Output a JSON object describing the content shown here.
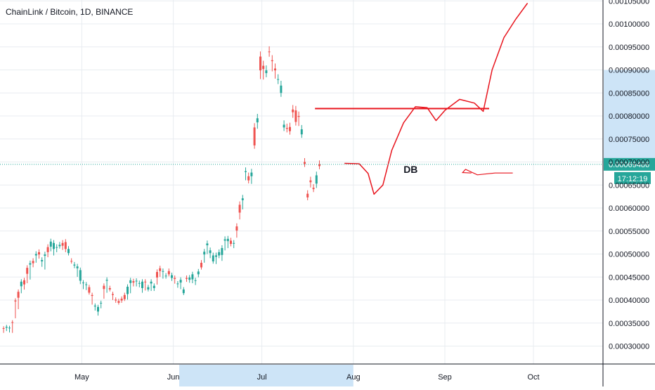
{
  "chart_data": {
    "type": "candlestick",
    "title": "ChainLink / Bitcoin, 1D, BINANCE",
    "price_axis": {
      "min": 0.00025,
      "max": 0.00105,
      "ticks": [
        "0.00030000",
        "0.00035000",
        "0.00040000",
        "0.00045000",
        "0.00050000",
        "0.00055000",
        "0.00060000",
        "0.00065000",
        "0.00070000",
        "0.00075000",
        "0.00080000",
        "0.00085000",
        "0.00090000",
        "0.00095000",
        "0.00100000",
        "0.00105000"
      ]
    },
    "time_axis": {
      "labels": [
        {
          "label": "May",
          "day": 27
        },
        {
          "label": "Jun",
          "day": 58
        },
        {
          "label": "Jul",
          "day": 88
        },
        {
          "label": "Aug",
          "day": 119
        },
        {
          "label": "Sep",
          "day": 150
        },
        {
          "label": "Oct",
          "day": 180
        }
      ]
    },
    "last_price": {
      "value": 0.00069486,
      "label": "0.00069486",
      "countdown": "17:12:19"
    },
    "colors": {
      "up": "#26a69a",
      "down": "#ef5350",
      "grid": "#e8ecf0",
      "annotation": "#e8141d",
      "last_price": "#26a69a",
      "range_highlight": "#cde4f7"
    },
    "highlight": {
      "time_from_day": 60,
      "time_to_day": 119,
      "price_from": 0.00069,
      "price_to": 0.0009
    },
    "candles_seed": [
      [
        0.000339,
        0.000338,
        0.000332
      ],
      [
        0.00034,
        0.000342,
        0.000336
      ],
      [
        0.000339,
        0.00034,
        0.000333
      ],
      [
        0.000352,
        0.000351,
        0.000332
      ],
      [
        0.000399,
        0.000397,
        0.000364
      ],
      [
        0.000418,
        0.000405,
        0.000384
      ],
      [
        0.00043,
        0.00044,
        0.000419
      ],
      [
        0.000443,
        0.000434,
        0.000427
      ],
      [
        0.00047,
        0.000457,
        0.000441
      ],
      [
        0.000477,
        0.00048,
        0.000449
      ],
      [
        0.000485,
        0.00048,
        0.000476
      ],
      [
        0.000497,
        0.0005,
        0.000486
      ],
      [
        0.000504,
        0.000499,
        0.000495
      ],
      [
        0.000484,
        0.000487,
        0.000477
      ],
      [
        0.000496,
        0.000499,
        0.000471
      ],
      [
        0.000515,
        0.000504,
        0.000498
      ],
      [
        0.000516,
        0.000527,
        0.000511
      ],
      [
        0.000511,
        0.000524,
        0.000502
      ],
      [
        0.000514,
        0.000515,
        0.000509
      ],
      [
        0.000517,
        0.00052,
        0.000519
      ],
      [
        0.000524,
        0.000518,
        0.000514
      ],
      [
        0.000526,
        0.000511,
        0.000509
      ],
      [
        0.000502,
        0.000511,
        0.000511
      ],
      [
        0.000485,
        0.000484,
        0.000484
      ],
      [
        0.000475,
        0.000477,
        0.000474
      ],
      [
        0.000469,
        0.000473,
        0.000455
      ],
      [
        0.000442,
        0.000465,
        0.000439
      ],
      [
        0.000437,
        0.000438,
        0.000428
      ],
      [
        0.000434,
        0.000434,
        0.000426
      ],
      [
        0.000428,
        0.000416,
        0.000422
      ],
      [
        0.000411,
        0.000409,
        0.000394
      ],
      [
        0.000386,
        0.000388,
        0.000381
      ],
      [
        0.000375,
        0.000385,
        0.00037
      ],
      [
        0.000393,
        0.000394,
        0.000386
      ],
      [
        0.000431,
        0.000424,
        0.000407
      ],
      [
        0.000442,
        0.000444,
        0.00042
      ],
      [
        0.000426,
        0.000423,
        0.000429
      ],
      [
        0.000413,
        0.000411,
        0.000404
      ],
      [
        0.000401,
        0.000399,
        0.000398
      ],
      [
        0.000398,
        0.000394,
        0.000396
      ],
      [
        0.000403,
        0.000399,
        0.000398
      ],
      [
        0.000411,
        0.000402,
        0.000405
      ],
      [
        0.000413,
        0.000429,
        0.000405
      ],
      [
        0.000437,
        0.000443,
        0.000419
      ],
      [
        0.000441,
        0.000438,
        0.000434
      ],
      [
        0.000441,
        0.000442,
        0.000434
      ],
      [
        0.000436,
        0.000437,
        0.000432
      ],
      [
        0.000426,
        0.00044,
        0.00042
      ],
      [
        0.00044,
        0.000439,
        0.000425
      ],
      [
        0.000423,
        0.000428,
        0.000423
      ],
      [
        0.000436,
        0.00044,
        0.000424
      ],
      [
        0.000426,
        0.000431,
        0.000424
      ],
      [
        0.000461,
        0.000449,
        0.000438
      ],
      [
        0.000469,
        0.000463,
        0.000455
      ],
      [
        0.000462,
        0.000463,
        0.000451
      ],
      [
        0.000452,
        0.000453,
        0.000451
      ],
      [
        0.000463,
        0.000456,
        0.000458
      ],
      [
        0.000448,
        0.000454,
        0.000446
      ],
      [
        0.000448,
        0.000446,
        0.00044
      ],
      [
        0.000435,
        0.000436,
        0.000431
      ],
      [
        0.000438,
        0.000444,
        0.000428
      ],
      [
        0.000415,
        0.000423,
        0.00042
      ],
      [
        0.000448,
        0.000446,
        0.000444
      ],
      [
        0.000444,
        0.000449,
        0.000442
      ],
      [
        0.000445,
        0.000456,
        0.000441
      ],
      [
        0.000443,
        0.000443,
        0.000437
      ],
      [
        0.000456,
        0.000462,
        0.000454
      ],
      [
        0.000481,
        0.000471,
        0.000473
      ],
      [
        0.000499,
        0.000505,
        0.000486
      ],
      [
        0.000519,
        0.000523,
        0.000505
      ],
      [
        0.000502,
        0.000508,
        0.000496
      ],
      [
        0.000484,
        0.000497,
        0.000485
      ],
      [
        0.000494,
        0.000497,
        0.000483
      ],
      [
        0.000497,
        0.000504,
        0.000496
      ],
      [
        0.000498,
        0.000513,
        0.00049
      ],
      [
        0.000529,
        0.000532,
        0.000513
      ],
      [
        0.000528,
        0.000533,
        0.000518
      ],
      [
        0.000529,
        0.000522,
        0.000526
      ],
      [
        0.000523,
        0.000524,
        0.000518
      ],
      [
        0.00056,
        0.000551,
        0.000541
      ],
      [
        0.000607,
        0.00059,
        0.000581
      ],
      [
        0.000617,
        0.000621,
        0.000603
      ],
      [
        0.000678,
        0.00068,
        0.000667
      ],
      [
        0.000669,
        0.00066,
        0.000661
      ],
      [
        0.000669,
        0.000677,
        0.000659
      ],
      [
        0.000775,
        0.000736,
        0.00074
      ],
      [
        0.000786,
        0.000795,
        0.00078
      ],
      [
        0.000929,
        0.000899,
        0.000889
      ],
      [
        0.000909,
        0.000902,
        0.000888
      ],
      [
        0.000893,
        0.000899,
        0.000899
      ],
      [
        0.00094,
        0.000939,
        0.000938
      ],
      [
        0.000921,
        0.000919,
        0.000906
      ],
      [
        0.000903,
        0.000899,
        0.00089
      ],
      [
        0.000879,
        0.00088,
        0.000878
      ],
      [
        0.00085,
        0.000866,
        0.000856
      ],
      [
        0.000775,
        0.000781,
        0.000794
      ],
      [
        0.000774,
        0.000772,
        0.000774
      ],
      [
        0.000776,
        0.000767,
        0.000772
      ],
      [
        0.000814,
        0.000808,
        0.000804
      ],
      [
        0.000812,
        0.000787,
        0.000795
      ],
      [
        0.0008,
        0.000798,
        0.000786
      ],
      [
        0.00076,
        0.000771,
        0.000765
      ],
      [
        0.0007,
        0.000696,
        0.0007
      ],
      [
        0.000631,
        0.000623,
        0.000623
      ],
      [
        0.00066,
        0.000656,
        0.000651
      ],
      [
        0.000644,
        0.000641,
        0.000646
      ],
      [
        0.000653,
        0.000671,
        0.00065
      ],
      [
        0.000695,
        0.000691,
        0.000692
      ]
    ],
    "annotations": {
      "resistance_price": 0.000816,
      "resistance_from_day": 106,
      "resistance_to_day": 165,
      "label": "DB",
      "projection": [
        {
          "day": 116,
          "price": 0.000697
        },
        {
          "day": 121,
          "price": 0.000696
        },
        {
          "day": 124,
          "price": 0.000675
        },
        {
          "day": 126,
          "price": 0.00063
        },
        {
          "day": 129,
          "price": 0.00065
        },
        {
          "day": 132,
          "price": 0.000725
        },
        {
          "day": 136,
          "price": 0.000785
        },
        {
          "day": 140,
          "price": 0.00082
        },
        {
          "day": 144,
          "price": 0.000818
        },
        {
          "day": 147,
          "price": 0.00079
        },
        {
          "day": 150,
          "price": 0.000812
        },
        {
          "day": 155,
          "price": 0.000836
        },
        {
          "day": 160,
          "price": 0.000828
        },
        {
          "day": 163,
          "price": 0.00081
        },
        {
          "day": 166,
          "price": 0.0009
        },
        {
          "day": 170,
          "price": 0.00097
        },
        {
          "day": 174,
          "price": 0.00101
        },
        {
          "day": 178,
          "price": 0.001045
        }
      ],
      "arrow": [
        {
          "day": 159,
          "price": 0.000676
        },
        {
          "day": 156,
          "price": 0.000677
        },
        {
          "day": 157,
          "price": 0.000684
        },
        {
          "day": 161,
          "price": 0.000672
        },
        {
          "day": 167,
          "price": 0.000676
        },
        {
          "day": 173,
          "price": 0.000676
        }
      ]
    }
  }
}
